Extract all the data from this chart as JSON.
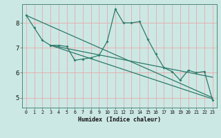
{
  "xlabel": "Humidex (Indice chaleur)",
  "background_color": "#cce8e4",
  "grid_color": "#e8aaaa",
  "line_color": "#2a7a6a",
  "xlim": [
    -0.5,
    23.5
  ],
  "ylim": [
    4.6,
    8.75
  ],
  "xticks": [
    0,
    1,
    2,
    3,
    4,
    5,
    6,
    7,
    8,
    9,
    10,
    11,
    12,
    13,
    14,
    15,
    16,
    17,
    18,
    19,
    20,
    21,
    22,
    23
  ],
  "yticks": [
    5,
    6,
    7,
    8
  ],
  "curve_x": [
    0,
    1,
    2,
    3,
    4,
    5,
    6,
    7,
    8,
    9,
    10,
    11,
    12,
    13,
    14,
    15,
    16,
    17,
    18,
    19,
    20,
    21,
    22,
    23
  ],
  "curve_y": [
    8.3,
    7.8,
    7.3,
    7.1,
    7.1,
    7.05,
    6.5,
    6.55,
    6.6,
    6.7,
    7.25,
    8.55,
    8.0,
    8.0,
    8.05,
    7.35,
    6.75,
    6.2,
    6.05,
    5.7,
    6.1,
    6.0,
    6.05,
    4.9
  ],
  "trend1_x": [
    0,
    23
  ],
  "trend1_y": [
    8.3,
    5.0
  ],
  "trend2_x": [
    3,
    23
  ],
  "trend2_y": [
    7.1,
    4.95
  ],
  "trend3_x": [
    3,
    23
  ],
  "trend3_y": [
    7.1,
    5.82
  ]
}
